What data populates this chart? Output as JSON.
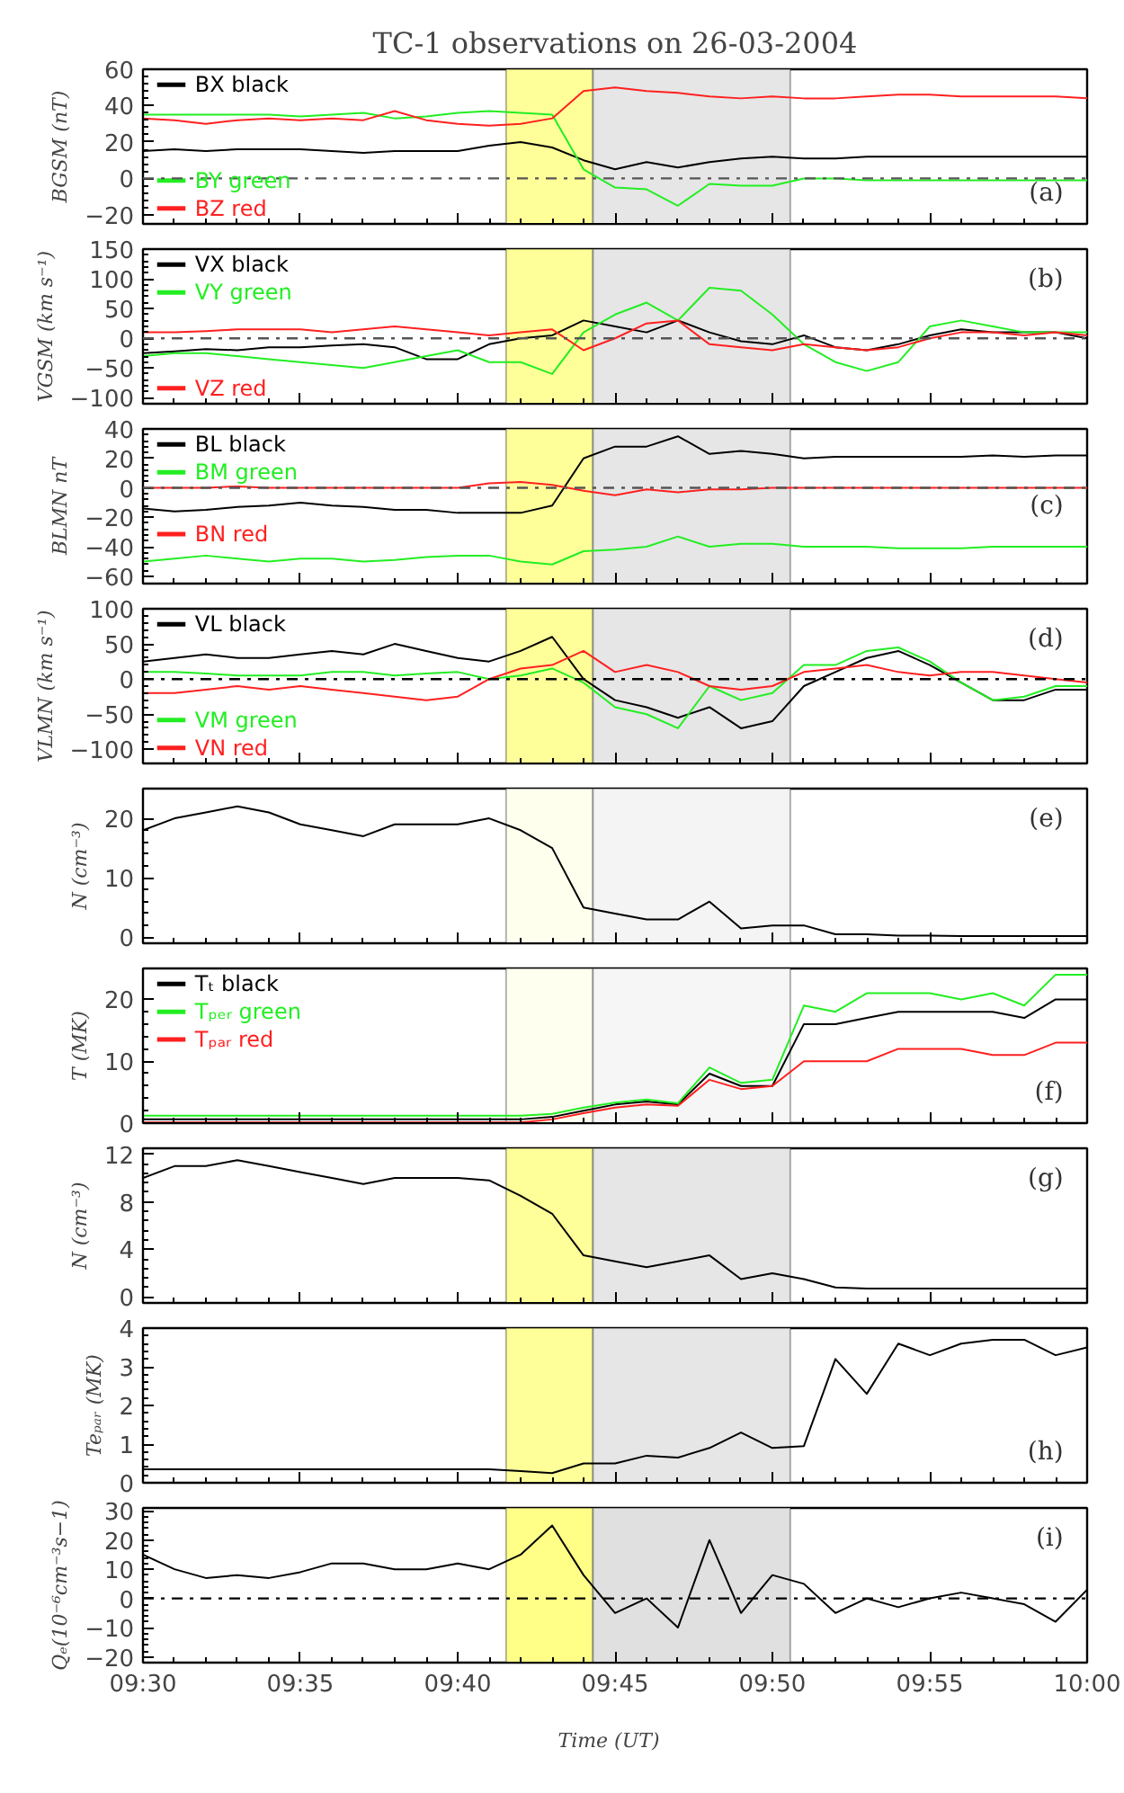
{
  "chart_data": [
    {
      "type": "line",
      "legend": "left",
      "title": "TC-1 observations on 26-03-2004",
      "ylabel": "BGSM (nT)",
      "annotations": [
        "(a)"
      ],
      "tick_labels": "y",
      "xlim": [
        9.5,
        10.0
      ],
      "xticks": [
        {
          "value": 9.5,
          "label": null
        },
        {
          "value": 9.5833,
          "label": null
        },
        {
          "value": 9.6667,
          "label": null
        },
        {
          "value": 9.75,
          "label": null
        },
        {
          "value": 9.8333,
          "label": null
        },
        {
          "value": 9.9167,
          "label": null
        },
        {
          "value": 10.0,
          "label": null
        }
      ],
      "ylim": [
        -25,
        60
      ],
      "yticks": [
        -20,
        0,
        20,
        40,
        60
      ],
      "bands": [
        {
          "axis": "x",
          "from": 9.6923,
          "to": 9.7383,
          "color": "#ffff99"
        },
        {
          "axis": "x",
          "from": 9.7383,
          "to": 9.8428,
          "color": "#e6e6e6"
        }
      ],
      "ref_lines": [
        {
          "axis": "y",
          "value": 0,
          "color": "#555555",
          "line_style": "dashdot"
        }
      ],
      "x": [
        9.5,
        9.5167,
        9.5333,
        9.55,
        9.5667,
        9.5833,
        9.6,
        9.6167,
        9.6333,
        9.65,
        9.6667,
        9.6833,
        9.7,
        9.7167,
        9.7333,
        9.75,
        9.7667,
        9.7833,
        9.8,
        9.8167,
        9.8333,
        9.85,
        9.8667,
        9.8833,
        9.9,
        9.9167,
        9.9333,
        9.95,
        9.9667,
        9.9833,
        10.0
      ],
      "series": [
        {
          "name": "BX black",
          "color": "#000000",
          "values": [
            15,
            16,
            15,
            16,
            16,
            16,
            15,
            14,
            15,
            15,
            15,
            18,
            20,
            17,
            10,
            5,
            9,
            6,
            9,
            11,
            12,
            11,
            11,
            12,
            12,
            12,
            12,
            12,
            12,
            12,
            12
          ]
        },
        {
          "name": "BY green",
          "color": "#22ee22",
          "values": [
            35,
            35,
            35,
            35,
            35,
            34,
            35,
            36,
            33,
            34,
            36,
            37,
            36,
            35,
            5,
            -5,
            -6,
            -15,
            -3,
            -4,
            -4,
            0,
            0,
            -1,
            -1,
            -1,
            -1,
            -1,
            -1,
            -1,
            -1
          ]
        },
        {
          "name": "BZ red",
          "color": "#ff2020",
          "values": [
            33,
            32,
            30,
            32,
            33,
            32,
            33,
            32,
            37,
            32,
            30,
            29,
            30,
            33,
            48,
            50,
            48,
            47,
            45,
            44,
            45,
            44,
            44,
            45,
            46,
            46,
            45,
            45,
            45,
            45,
            44
          ]
        }
      ]
    },
    {
      "type": "line",
      "legend": "left",
      "ylabel": "VGSM (km s⁻¹)",
      "annotations": [
        "(b)"
      ],
      "tick_labels": "y",
      "xlim": [
        9.5,
        10.0
      ],
      "xticks": [
        {
          "value": 9.5,
          "label": null
        },
        {
          "value": 9.5833,
          "label": null
        },
        {
          "value": 9.6667,
          "label": null
        },
        {
          "value": 9.75,
          "label": null
        },
        {
          "value": 9.8333,
          "label": null
        },
        {
          "value": 9.9167,
          "label": null
        },
        {
          "value": 10.0,
          "label": null
        }
      ],
      "ylim": [
        -110,
        150
      ],
      "yticks": [
        -100,
        -50,
        0,
        50,
        100,
        150
      ],
      "bands": [
        {
          "axis": "x",
          "from": 9.6923,
          "to": 9.7383,
          "color": "#ffff99"
        },
        {
          "axis": "x",
          "from": 9.7383,
          "to": 9.8428,
          "color": "#e6e6e6"
        }
      ],
      "ref_lines": [
        {
          "axis": "y",
          "value": 0,
          "color": "#555555",
          "line_style": "dashdot"
        }
      ],
      "x": [
        9.5,
        9.5167,
        9.5333,
        9.55,
        9.5667,
        9.5833,
        9.6,
        9.6167,
        9.6333,
        9.65,
        9.6667,
        9.6833,
        9.7,
        9.7167,
        9.7333,
        9.75,
        9.7667,
        9.7833,
        9.8,
        9.8167,
        9.8333,
        9.85,
        9.8667,
        9.8833,
        9.9,
        9.9167,
        9.9333,
        9.95,
        9.9667,
        9.9833,
        10.0
      ],
      "series": [
        {
          "name": "VX black",
          "color": "#000000",
          "values": [
            -25,
            -22,
            -18,
            -20,
            -15,
            -15,
            -12,
            -10,
            -15,
            -35,
            -35,
            -10,
            0,
            5,
            30,
            20,
            10,
            30,
            10,
            -5,
            -10,
            5,
            -15,
            -20,
            -10,
            5,
            15,
            10,
            10,
            10,
            0
          ]
        },
        {
          "name": "VY green",
          "color": "#22ee22",
          "values": [
            -30,
            -25,
            -25,
            -30,
            -35,
            -40,
            -45,
            -50,
            -40,
            -30,
            -20,
            -40,
            -40,
            -60,
            10,
            40,
            60,
            30,
            85,
            80,
            40,
            -10,
            -40,
            -55,
            -40,
            20,
            30,
            20,
            10,
            10,
            10
          ]
        },
        {
          "name": "VZ red",
          "color": "#ff2020",
          "values": [
            10,
            10,
            12,
            15,
            15,
            15,
            10,
            15,
            20,
            15,
            10,
            5,
            10,
            15,
            -20,
            0,
            25,
            30,
            -10,
            -15,
            -20,
            -10,
            -15,
            -20,
            -15,
            0,
            10,
            10,
            5,
            10,
            5
          ]
        }
      ]
    },
    {
      "type": "line",
      "legend": "left",
      "ylabel": "BLMN nT",
      "annotations": [
        "(c)"
      ],
      "tick_labels": "y",
      "xlim": [
        9.5,
        10.0
      ],
      "xticks": [
        {
          "value": 9.5,
          "label": null
        },
        {
          "value": 9.5833,
          "label": null
        },
        {
          "value": 9.6667,
          "label": null
        },
        {
          "value": 9.75,
          "label": null
        },
        {
          "value": 9.8333,
          "label": null
        },
        {
          "value": 9.9167,
          "label": null
        },
        {
          "value": 10.0,
          "label": null
        }
      ],
      "ylim": [
        -65,
        40
      ],
      "yticks": [
        -60,
        -40,
        -20,
        0,
        20,
        40
      ],
      "bands": [
        {
          "axis": "x",
          "from": 9.6923,
          "to": 9.7383,
          "color": "#ffff99"
        },
        {
          "axis": "x",
          "from": 9.7383,
          "to": 9.8428,
          "color": "#e6e6e6"
        }
      ],
      "ref_lines": [
        {
          "axis": "y",
          "value": 0,
          "color": "#555555",
          "line_style": "dashdot"
        }
      ],
      "x": [
        9.5,
        9.5167,
        9.5333,
        9.55,
        9.5667,
        9.5833,
        9.6,
        9.6167,
        9.6333,
        9.65,
        9.6667,
        9.6833,
        9.7,
        9.7167,
        9.7333,
        9.75,
        9.7667,
        9.7833,
        9.8,
        9.8167,
        9.8333,
        9.85,
        9.8667,
        9.8833,
        9.9,
        9.9167,
        9.9333,
        9.95,
        9.9667,
        9.9833,
        10.0
      ],
      "series": [
        {
          "name": "BL black",
          "color": "#000000",
          "values": [
            -14,
            -16,
            -15,
            -13,
            -12,
            -10,
            -12,
            -13,
            -15,
            -15,
            -17,
            -17,
            -17,
            -12,
            20,
            28,
            28,
            35,
            23,
            25,
            23,
            20,
            21,
            21,
            21,
            21,
            21,
            22,
            21,
            22,
            22
          ]
        },
        {
          "name": "BM green",
          "color": "#22ee22",
          "values": [
            -50,
            -48,
            -46,
            -48,
            -50,
            -48,
            -48,
            -50,
            -49,
            -47,
            -46,
            -46,
            -50,
            -52,
            -43,
            -42,
            -40,
            -33,
            -40,
            -38,
            -38,
            -40,
            -40,
            -40,
            -41,
            -41,
            -41,
            -40,
            -40,
            -40,
            -40
          ]
        },
        {
          "name": "BN red",
          "color": "#ff2020",
          "values": [
            0,
            0,
            0,
            1,
            0,
            0,
            0,
            0,
            0,
            0,
            0,
            3,
            4,
            2,
            -2,
            -5,
            -1,
            -3,
            -1,
            -1,
            0,
            0,
            0,
            0,
            0,
            0,
            0,
            0,
            0,
            0,
            0
          ]
        }
      ]
    },
    {
      "type": "line",
      "legend": "left",
      "ylabel": "VLMN (km s⁻¹)",
      "annotations": [
        "(d)"
      ],
      "tick_labels": "y",
      "xlim": [
        9.5,
        10.0
      ],
      "xticks": [
        {
          "value": 9.5,
          "label": null
        },
        {
          "value": 9.5833,
          "label": null
        },
        {
          "value": 9.6667,
          "label": null
        },
        {
          "value": 9.75,
          "label": null
        },
        {
          "value": 9.8333,
          "label": null
        },
        {
          "value": 9.9167,
          "label": null
        },
        {
          "value": 10.0,
          "label": null
        }
      ],
      "ylim": [
        -120,
        100
      ],
      "yticks": [
        -100,
        -50,
        0,
        50,
        100
      ],
      "bands": [
        {
          "axis": "x",
          "from": 9.6923,
          "to": 9.7383,
          "color": "#ffff99"
        },
        {
          "axis": "x",
          "from": 9.7383,
          "to": 9.8428,
          "color": "#e6e6e6"
        }
      ],
      "ref_lines": [
        {
          "axis": "y",
          "value": 0,
          "color": "#000000",
          "line_style": "dashdot"
        }
      ],
      "x": [
        9.5,
        9.5167,
        9.5333,
        9.55,
        9.5667,
        9.5833,
        9.6,
        9.6167,
        9.6333,
        9.65,
        9.6667,
        9.6833,
        9.7,
        9.7167,
        9.7333,
        9.75,
        9.7667,
        9.7833,
        9.8,
        9.8167,
        9.8333,
        9.85,
        9.8667,
        9.8833,
        9.9,
        9.9167,
        9.9333,
        9.95,
        9.9667,
        9.9833,
        10.0
      ],
      "series": [
        {
          "name": "VL black",
          "color": "#000000",
          "values": [
            25,
            30,
            35,
            30,
            30,
            35,
            40,
            35,
            50,
            40,
            30,
            25,
            40,
            60,
            0,
            -30,
            -40,
            -55,
            -40,
            -70,
            -60,
            -10,
            10,
            30,
            40,
            20,
            -5,
            -30,
            -30,
            -15,
            -15
          ]
        },
        {
          "name": "VM green",
          "color": "#22ee22",
          "values": [
            10,
            10,
            8,
            5,
            5,
            5,
            10,
            10,
            5,
            8,
            10,
            0,
            5,
            15,
            -5,
            -40,
            -50,
            -70,
            -10,
            -30,
            -20,
            20,
            20,
            40,
            45,
            25,
            -5,
            -30,
            -25,
            -10,
            -10
          ]
        },
        {
          "name": "VN red",
          "color": "#ff2020",
          "values": [
            -20,
            -20,
            -15,
            -10,
            -15,
            -10,
            -15,
            -20,
            -25,
            -30,
            -25,
            0,
            15,
            20,
            40,
            10,
            20,
            10,
            -10,
            -15,
            -10,
            10,
            15,
            20,
            10,
            5,
            10,
            10,
            5,
            0,
            -5
          ]
        }
      ]
    },
    {
      "type": "line",
      "ylabel": "N (cm⁻³)",
      "annotations": [
        "(e)"
      ],
      "tick_labels": "y",
      "xlim": [
        9.5,
        10.0
      ],
      "xticks": [
        {
          "value": 9.5,
          "label": null
        },
        {
          "value": 9.5833,
          "label": null
        },
        {
          "value": 9.6667,
          "label": null
        },
        {
          "value": 9.75,
          "label": null
        },
        {
          "value": 9.8333,
          "label": null
        },
        {
          "value": 9.9167,
          "label": null
        },
        {
          "value": 10.0,
          "label": null
        }
      ],
      "ylim": [
        -1,
        25
      ],
      "yticks": [
        0,
        10,
        20
      ],
      "bands": [
        {
          "axis": "x",
          "from": 9.6923,
          "to": 9.7383,
          "color": "#ffffee"
        },
        {
          "axis": "x",
          "from": 9.7383,
          "to": 9.8428,
          "color": "#f4f4f4"
        }
      ],
      "x": [
        9.5,
        9.5167,
        9.5333,
        9.55,
        9.5667,
        9.5833,
        9.6,
        9.6167,
        9.6333,
        9.65,
        9.6667,
        9.6833,
        9.7,
        9.7167,
        9.7333,
        9.75,
        9.7667,
        9.7833,
        9.8,
        9.8167,
        9.8333,
        9.85,
        9.8667,
        9.8833,
        9.9,
        9.9167,
        9.9333,
        9.95,
        9.9667,
        9.9833,
        10.0
      ],
      "series": [
        {
          "color": "#000000",
          "values": [
            18,
            20,
            21,
            22,
            21,
            19,
            18,
            17,
            19,
            19,
            19,
            20,
            18,
            15,
            5,
            4,
            3,
            3,
            6,
            1.5,
            2,
            2,
            0.5,
            0.5,
            0.3,
            0.3,
            0.2,
            0.2,
            0.2,
            0.2,
            0.2
          ]
        }
      ]
    },
    {
      "type": "line",
      "legend": "left",
      "ylabel": "T (MK)",
      "annotations": [
        "(f)"
      ],
      "tick_labels": "y",
      "xlim": [
        9.5,
        10.0
      ],
      "xticks": [
        {
          "value": 9.5,
          "label": null
        },
        {
          "value": 9.5833,
          "label": null
        },
        {
          "value": 9.6667,
          "label": null
        },
        {
          "value": 9.75,
          "label": null
        },
        {
          "value": 9.8333,
          "label": null
        },
        {
          "value": 9.9167,
          "label": null
        },
        {
          "value": 10.0,
          "label": null
        }
      ],
      "ylim": [
        0,
        25
      ],
      "yticks": [
        0,
        10,
        20
      ],
      "bands": [
        {
          "axis": "x",
          "from": 9.6923,
          "to": 9.7383,
          "color": "#fffff0"
        },
        {
          "axis": "x",
          "from": 9.7383,
          "to": 9.8428,
          "color": "#f6f6f6"
        }
      ],
      "x": [
        9.5,
        9.5167,
        9.5333,
        9.55,
        9.5667,
        9.5833,
        9.6,
        9.6167,
        9.6333,
        9.65,
        9.6667,
        9.6833,
        9.7,
        9.7167,
        9.7333,
        9.75,
        9.7667,
        9.7833,
        9.8,
        9.8167,
        9.8333,
        9.85,
        9.8667,
        9.8833,
        9.9,
        9.9167,
        9.9333,
        9.95,
        9.9667,
        9.9833,
        10.0
      ],
      "series": [
        {
          "name": "Tₜ black",
          "color": "#000000",
          "values": [
            0.6,
            0.6,
            0.6,
            0.6,
            0.6,
            0.6,
            0.6,
            0.6,
            0.6,
            0.6,
            0.6,
            0.6,
            0.6,
            1,
            2,
            3,
            3.5,
            3,
            8,
            6,
            6,
            16,
            16,
            17,
            18,
            18,
            18,
            18,
            17,
            20,
            20
          ]
        },
        {
          "name": "Tₚₑᵣ green",
          "color": "#22ee22",
          "values": [
            1.2,
            1.2,
            1.2,
            1.2,
            1.2,
            1.2,
            1.2,
            1.2,
            1.2,
            1.2,
            1.2,
            1.2,
            1.2,
            1.5,
            2.5,
            3.3,
            3.8,
            3.2,
            9,
            6.5,
            7,
            19,
            18,
            21,
            21,
            21,
            20,
            21,
            19,
            24,
            24
          ]
        },
        {
          "name": "Tₚₐᵣ red",
          "color": "#ff2020",
          "values": [
            0.1,
            0.1,
            0.1,
            0.1,
            0.1,
            0.1,
            0.1,
            0.1,
            0.1,
            0.1,
            0.1,
            0.1,
            0.1,
            0.6,
            1.6,
            2.5,
            3,
            2.8,
            7,
            5.5,
            6,
            10,
            10,
            10,
            12,
            12,
            12,
            11,
            11,
            13,
            13
          ]
        }
      ]
    },
    {
      "type": "line",
      "ylabel": "N (cm⁻³)",
      "annotations": [
        "(g)"
      ],
      "tick_labels": "y",
      "xlim": [
        9.5,
        10.0
      ],
      "xticks": [
        {
          "value": 9.5,
          "label": null
        },
        {
          "value": 9.5833,
          "label": null
        },
        {
          "value": 9.6667,
          "label": null
        },
        {
          "value": 9.75,
          "label": null
        },
        {
          "value": 9.8333,
          "label": null
        },
        {
          "value": 9.9167,
          "label": null
        },
        {
          "value": 10.0,
          "label": null
        }
      ],
      "ylim": [
        -0.5,
        12.5
      ],
      "yticks": [
        0,
        4,
        8,
        12
      ],
      "bands": [
        {
          "axis": "x",
          "from": 9.6923,
          "to": 9.7383,
          "color": "#ffff99"
        },
        {
          "axis": "x",
          "from": 9.7383,
          "to": 9.8428,
          "color": "#e6e6e6"
        }
      ],
      "x": [
        9.5,
        9.5167,
        9.5333,
        9.55,
        9.5667,
        9.5833,
        9.6,
        9.6167,
        9.6333,
        9.65,
        9.6667,
        9.6833,
        9.7,
        9.7167,
        9.7333,
        9.75,
        9.7667,
        9.7833,
        9.8,
        9.8167,
        9.8333,
        9.85,
        9.8667,
        9.8833,
        9.9,
        9.9167,
        9.9333,
        9.95,
        9.9667,
        9.9833,
        10.0
      ],
      "series": [
        {
          "color": "#000000",
          "values": [
            10,
            11,
            11,
            11.5,
            11,
            10.5,
            10,
            9.5,
            10,
            10,
            10,
            9.8,
            8.5,
            7,
            3.5,
            3,
            2.5,
            3,
            3.5,
            1.5,
            2,
            1.5,
            0.8,
            0.7,
            0.7,
            0.7,
            0.7,
            0.7,
            0.7,
            0.7,
            0.7
          ]
        }
      ]
    },
    {
      "type": "line",
      "ylabel": "Teₚₐᵣ (MK)",
      "annotations": [
        "(h)"
      ],
      "tick_labels": "y",
      "xlim": [
        9.5,
        10.0
      ],
      "xticks": [
        {
          "value": 9.5,
          "label": null
        },
        {
          "value": 9.5833,
          "label": null
        },
        {
          "value": 9.6667,
          "label": null
        },
        {
          "value": 9.75,
          "label": null
        },
        {
          "value": 9.8333,
          "label": null
        },
        {
          "value": 9.9167,
          "label": null
        },
        {
          "value": 10.0,
          "label": null
        }
      ],
      "ylim": [
        0,
        4
      ],
      "yticks": [
        0,
        1,
        2,
        3,
        4
      ],
      "bands": [
        {
          "axis": "x",
          "from": 9.6923,
          "to": 9.7383,
          "color": "#ffff99"
        },
        {
          "axis": "x",
          "from": 9.7383,
          "to": 9.8428,
          "color": "#e6e6e6"
        }
      ],
      "x": [
        9.5,
        9.5167,
        9.5333,
        9.55,
        9.5667,
        9.5833,
        9.6,
        9.6167,
        9.6333,
        9.65,
        9.6667,
        9.6833,
        9.7,
        9.7167,
        9.7333,
        9.75,
        9.7667,
        9.7833,
        9.8,
        9.8167,
        9.8333,
        9.85,
        9.8667,
        9.8833,
        9.9,
        9.9167,
        9.9333,
        9.95,
        9.9667,
        9.9833,
        10.0
      ],
      "series": [
        {
          "color": "#000000",
          "values": [
            0.35,
            0.35,
            0.35,
            0.35,
            0.35,
            0.35,
            0.35,
            0.35,
            0.35,
            0.35,
            0.35,
            0.35,
            0.3,
            0.25,
            0.5,
            0.5,
            0.7,
            0.65,
            0.9,
            1.3,
            0.9,
            0.95,
            3.2,
            2.3,
            3.6,
            3.3,
            3.6,
            3.7,
            3.7,
            3.3,
            3.5
          ]
        }
      ]
    },
    {
      "type": "line",
      "ylabel": "Qₑ(10⁻⁶cm⁻³s−1)",
      "xlabel": "Time   (UT)",
      "annotations": [
        "(i)"
      ],
      "xlim": [
        9.5,
        10.0
      ],
      "xticks": [
        {
          "value": 9.5,
          "label": "09:30"
        },
        {
          "value": 9.5833,
          "label": "09:35"
        },
        {
          "value": 9.6667,
          "label": "09:40"
        },
        {
          "value": 9.75,
          "label": "09:45"
        },
        {
          "value": 9.8333,
          "label": "09:50"
        },
        {
          "value": 9.9167,
          "label": "09:55"
        },
        {
          "value": 10.0,
          "label": "10:00"
        }
      ],
      "ylim": [
        -22,
        31
      ],
      "yticks": [
        -20,
        -10,
        0,
        10,
        20,
        30
      ],
      "bands": [
        {
          "axis": "x",
          "from": 9.6923,
          "to": 9.7383,
          "color": "#ffff88"
        },
        {
          "axis": "x",
          "from": 9.7383,
          "to": 9.8428,
          "color": "#e0e0e0"
        }
      ],
      "ref_lines": [
        {
          "axis": "y",
          "value": 0,
          "color": "#000000",
          "line_style": "dashdot"
        }
      ],
      "x": [
        9.5,
        9.5167,
        9.5333,
        9.55,
        9.5667,
        9.5833,
        9.6,
        9.6167,
        9.6333,
        9.65,
        9.6667,
        9.6833,
        9.7,
        9.7167,
        9.7333,
        9.75,
        9.7667,
        9.7833,
        9.8,
        9.8167,
        9.8333,
        9.85,
        9.8667,
        9.8833,
        9.9,
        9.9167,
        9.9333,
        9.95,
        9.9667,
        9.9833,
        10.0
      ],
      "series": [
        {
          "color": "#000000",
          "values": [
            15,
            10,
            7,
            8,
            7,
            9,
            12,
            12,
            10,
            10,
            12,
            10,
            15,
            25,
            8,
            -5,
            0,
            -10,
            20,
            -5,
            8,
            5,
            -5,
            0,
            -3,
            0,
            2,
            0,
            -2,
            -8,
            3
          ]
        }
      ]
    }
  ]
}
